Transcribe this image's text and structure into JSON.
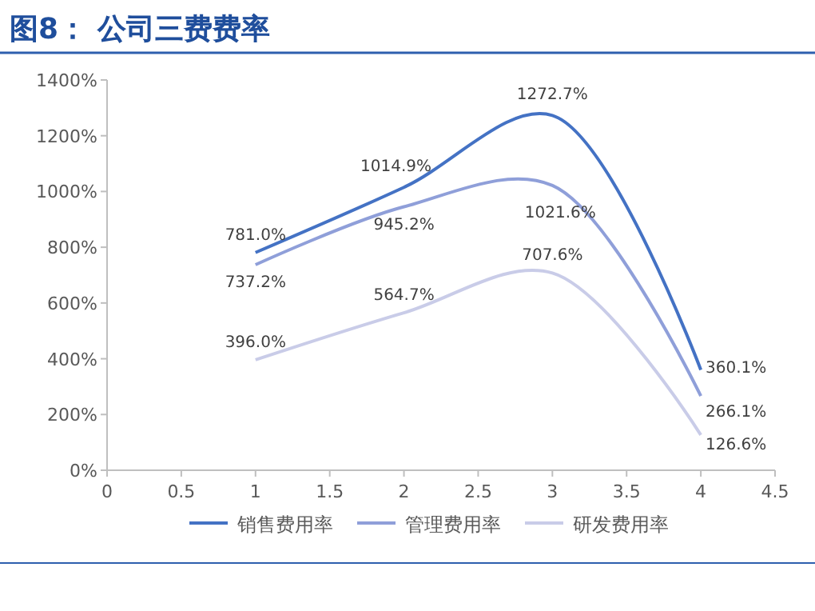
{
  "chart_data": {
    "type": "line",
    "title": "图8： 公司三费费率",
    "x": [
      1,
      2,
      3,
      4
    ],
    "series": [
      {
        "name": "销售费用率",
        "color": "#4472c4",
        "values": [
          781.0,
          1014.9,
          1272.7,
          360.1
        ],
        "value_labels": [
          "781.0%",
          "1014.9%",
          "1272.7%",
          "360.1%"
        ]
      },
      {
        "name": "管理费用率",
        "color": "#8f9fd9",
        "values": [
          737.2,
          945.2,
          1021.6,
          266.1
        ],
        "value_labels": [
          "737.2%",
          "945.2%",
          "1021.6%",
          "266.1%"
        ]
      },
      {
        "name": "研发费用率",
        "color": "#c9cce8",
        "values": [
          396.0,
          564.7,
          707.6,
          126.6
        ],
        "value_labels": [
          "396.0%",
          "564.7%",
          "707.6%",
          "126.6%"
        ]
      }
    ],
    "xlim": [
      0,
      4.5
    ],
    "xticks": [
      0,
      0.5,
      1,
      1.5,
      2,
      2.5,
      3,
      3.5,
      4,
      4.5
    ],
    "ylim": [
      0,
      1400
    ],
    "yticks": [
      {
        "value": 0,
        "label": "0%"
      },
      {
        "value": 200,
        "label": "200%"
      },
      {
        "value": 400,
        "label": "400%"
      },
      {
        "value": 600,
        "label": "600%"
      },
      {
        "value": 800,
        "label": "800%"
      },
      {
        "value": 1000,
        "label": "1000%"
      },
      {
        "value": 1200,
        "label": "1200%"
      },
      {
        "value": 1400,
        "label": "1400%"
      }
    ],
    "legend": "bottom",
    "marker": "none",
    "line_style": "solid",
    "grid": false
  }
}
